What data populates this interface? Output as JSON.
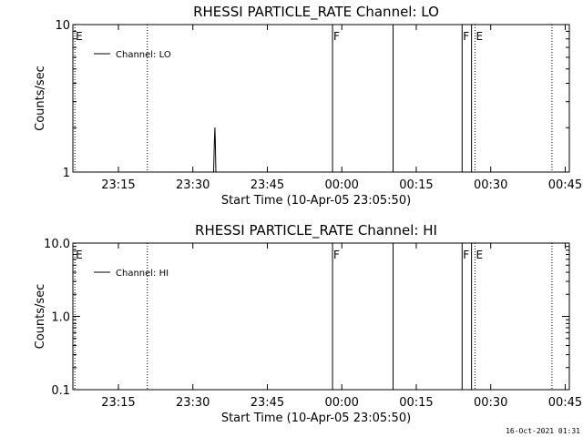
{
  "footer": {
    "timestamp": "16-Oct-2021 01:31"
  },
  "chart_data": [
    {
      "type": "line",
      "title": "RHESSI PARTICLE_RATE Channel: LO",
      "xlabel": "Start Time (10-Apr-05 23:05:50)",
      "ylabel": "Counts/sec",
      "y_scale": "log",
      "ylim": [
        1,
        10
      ],
      "xlim_minutes": [
        0,
        100
      ],
      "xticks": [
        {
          "label": "23:15",
          "min": 9.17
        },
        {
          "label": "23:30",
          "min": 24.17
        },
        {
          "label": "23:45",
          "min": 39.17
        },
        {
          "label": "00:00",
          "min": 54.17
        },
        {
          "label": "00:15",
          "min": 69.17
        },
        {
          "label": "00:30",
          "min": 84.17
        },
        {
          "label": "00:45",
          "min": 99.17
        }
      ],
      "yticks": [
        {
          "label": "1",
          "value": 1
        },
        {
          "label": "10",
          "value": 10
        }
      ],
      "legend": {
        "placement": "top-left",
        "entries": [
          "Channel: LO"
        ]
      },
      "series": [
        {
          "name": "Channel: LO",
          "points": [
            [
              28.35,
              1.0
            ],
            [
              28.5,
              1.58
            ],
            [
              28.6,
              2.0
            ],
            [
              28.7,
              1.58
            ],
            [
              28.8,
              1.0
            ]
          ]
        }
      ],
      "event_lines": [
        {
          "min": 0.4,
          "style": "dotted",
          "label": "E"
        },
        {
          "min": 15.0,
          "style": "dotted",
          "label": ""
        },
        {
          "min": 52.3,
          "style": "solid",
          "label": "F"
        },
        {
          "min": 64.5,
          "style": "solid",
          "label": ""
        },
        {
          "min": 78.4,
          "style": "solid",
          "label": "F"
        },
        {
          "min": 80.3,
          "style": "solid",
          "label": ""
        },
        {
          "min": 81.0,
          "style": "dotted",
          "label": "E"
        },
        {
          "min": 96.5,
          "style": "dotted",
          "label": ""
        }
      ]
    },
    {
      "type": "line",
      "title": "RHESSI PARTICLE_RATE Channel: HI",
      "xlabel": "Start Time (10-Apr-05 23:05:50)",
      "ylabel": "Counts/sec",
      "y_scale": "log",
      "ylim": [
        0.1,
        10
      ],
      "xlim_minutes": [
        0,
        100
      ],
      "xticks": [
        {
          "label": "23:15",
          "min": 9.17
        },
        {
          "label": "23:30",
          "min": 24.17
        },
        {
          "label": "23:45",
          "min": 39.17
        },
        {
          "label": "00:00",
          "min": 54.17
        },
        {
          "label": "00:15",
          "min": 69.17
        },
        {
          "label": "00:30",
          "min": 84.17
        },
        {
          "label": "00:45",
          "min": 99.17
        }
      ],
      "yticks": [
        {
          "label": "0.1",
          "value": 0.1
        },
        {
          "label": "1.0",
          "value": 1
        },
        {
          "label": "10.0",
          "value": 10
        }
      ],
      "legend": {
        "placement": "top-left",
        "entries": [
          "Channel: HI"
        ]
      },
      "series": [
        {
          "name": "Channel: HI",
          "points": []
        }
      ],
      "event_lines": [
        {
          "min": 0.4,
          "style": "dotted",
          "label": "E"
        },
        {
          "min": 15.0,
          "style": "dotted",
          "label": ""
        },
        {
          "min": 52.3,
          "style": "solid",
          "label": "F"
        },
        {
          "min": 64.5,
          "style": "solid",
          "label": ""
        },
        {
          "min": 78.4,
          "style": "solid",
          "label": "F"
        },
        {
          "min": 80.3,
          "style": "solid",
          "label": ""
        },
        {
          "min": 81.0,
          "style": "dotted",
          "label": "E"
        },
        {
          "min": 96.5,
          "style": "dotted",
          "label": ""
        }
      ]
    }
  ]
}
